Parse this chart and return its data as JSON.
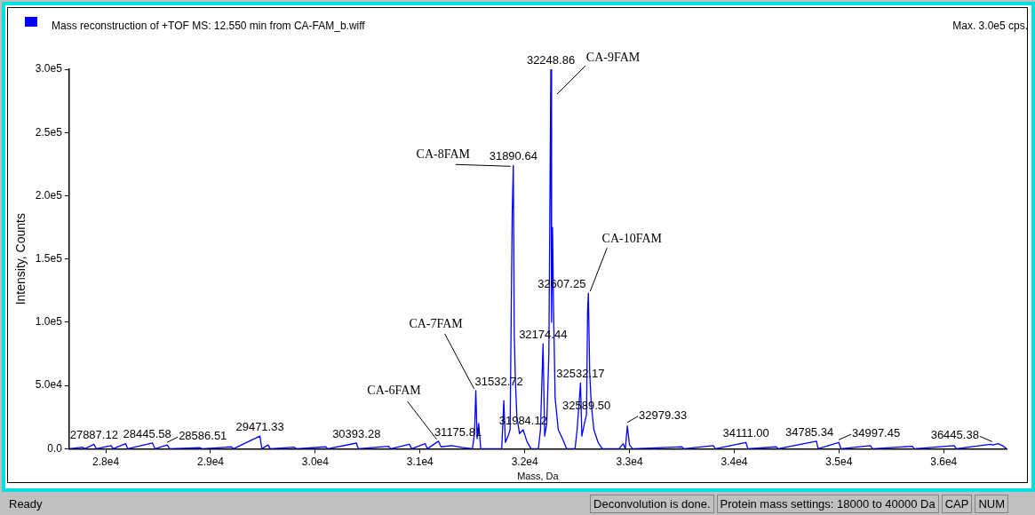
{
  "chart_data": {
    "type": "line",
    "title": "Mass reconstruction of  +TOF MS: 12.550 min from CA-FAM_b.wiff",
    "subtitle": "Max. 3.0e5 cps.",
    "xlabel": "Mass, Da",
    "ylabel": "Intensity, Counts",
    "x": [
      27650,
      27780,
      27800,
      27887.12,
      27910,
      28050,
      28070,
      28190,
      28210,
      28445.58,
      28470,
      28586.51,
      28610,
      28900,
      28920,
      29200,
      29220,
      29471.33,
      29490,
      29550,
      29570,
      29800,
      29820,
      30100,
      30120,
      30393.28,
      30410,
      30700,
      30720,
      30900,
      30920,
      31050,
      31070,
      31175.81,
      31200,
      31300,
      31400,
      31500,
      31520,
      31532.72,
      31545,
      31560,
      31580,
      31780,
      31800,
      31815,
      31840,
      31860,
      31880,
      31890.64,
      31900,
      31910,
      31925,
      31950,
      31984.12,
      32020,
      32060,
      32130,
      32150,
      32174.44,
      32190,
      32210,
      32230,
      32248.86,
      32256,
      32265,
      32275,
      32290,
      32320,
      32360,
      32400,
      32480,
      32500,
      32532.17,
      32545,
      32570,
      32589.5,
      32600,
      32607.25,
      32620,
      32635,
      32660,
      32700,
      32740,
      32900,
      32940,
      32960,
      32979.33,
      33000,
      33030,
      33500,
      33520,
      33800,
      33820,
      34111,
      34130,
      34400,
      34420,
      34785.34,
      34800,
      34997.45,
      35020,
      35300,
      35320,
      35700,
      35720,
      36100,
      36120,
      36445.38,
      36470,
      36520,
      36560,
      36600
    ],
    "series": [
      {
        "color": "#0000ff",
        "values": [
          0,
          1200,
          0,
          3500,
          0,
          2500,
          0,
          4000,
          0,
          4500,
          0,
          3000,
          0,
          800,
          0,
          1500,
          0,
          10000,
          0,
          3000,
          0,
          1200,
          0,
          1500,
          0,
          4500,
          0,
          2000,
          0,
          3500,
          0,
          4000,
          0,
          6000,
          1500,
          2500,
          1000,
          0,
          12000,
          46000,
          8000,
          20000,
          0,
          0,
          38000,
          5000,
          10000,
          15000,
          185000,
          224000,
          90000,
          55000,
          25000,
          12000,
          15000,
          6000,
          0,
          0,
          15000,
          83000,
          10000,
          20000,
          75000,
          300000,
          100000,
          175000,
          110000,
          40000,
          15000,
          8000,
          0,
          0,
          15000,
          52000,
          10000,
          20000,
          27000,
          110000,
          123000,
          60000,
          35000,
          15000,
          5000,
          0,
          0,
          4000,
          0,
          18000,
          3000,
          0,
          1500,
          0,
          2500,
          0,
          5000,
          0,
          1500,
          0,
          6000,
          0,
          5000,
          0,
          2500,
          0,
          2000,
          0,
          2500,
          0,
          3500,
          3000,
          4000,
          2500,
          0
        ]
      }
    ],
    "marker": "none",
    "line_style": "solid",
    "grid": false,
    "xlim": [
      27650,
      36600
    ],
    "xticks": [
      {
        "value": 28000,
        "label": "2.8e4"
      },
      {
        "value": 29000,
        "label": "2.9e4"
      },
      {
        "value": 30000,
        "label": "3.0e4"
      },
      {
        "value": 31000,
        "label": "3.1e4"
      },
      {
        "value": 32000,
        "label": "3.2e4"
      },
      {
        "value": 33000,
        "label": "3.3e4"
      },
      {
        "value": 34000,
        "label": "3.4e4"
      },
      {
        "value": 35000,
        "label": "3.5e4"
      },
      {
        "value": 36000,
        "label": "3.6e4"
      }
    ],
    "ylim": [
      0,
      300000
    ],
    "yticks": [
      {
        "value": 0,
        "label": "0.0"
      },
      {
        "value": 50000,
        "label": "5.0e4"
      },
      {
        "value": 100000,
        "label": "1.0e5"
      },
      {
        "value": 150000,
        "label": "1.5e5"
      },
      {
        "value": 200000,
        "label": "2.0e5"
      },
      {
        "value": 250000,
        "label": "2.5e5"
      },
      {
        "value": 300000,
        "label": "3.0e5"
      }
    ],
    "annotations": [
      {
        "text": "27887.12",
        "x": 27887.12,
        "y": 3500
      },
      {
        "text": "28445.58",
        "x": 28445.58,
        "y": 4500
      },
      {
        "text": "28586.51",
        "x": 28586.51,
        "y": 3000
      },
      {
        "text": "29471.33",
        "x": 29471.33,
        "y": 10000
      },
      {
        "text": "30393.28",
        "x": 30393.28,
        "y": 4500
      },
      {
        "text": "31175.81",
        "x": 31175.81,
        "y": 6000
      },
      {
        "text": "31532.72",
        "x": 31532.72,
        "y": 46000
      },
      {
        "text": "31890.64",
        "x": 31890.64,
        "y": 224000
      },
      {
        "text": "31984.12",
        "x": 31984.12,
        "y": 15000
      },
      {
        "text": "32174.44",
        "x": 32174.44,
        "y": 83000
      },
      {
        "text": "32248.86",
        "x": 32248.86,
        "y": 300000
      },
      {
        "text": "32532.17",
        "x": 32532.17,
        "y": 52000
      },
      {
        "text": "32589.50",
        "x": 32589.5,
        "y": 27000
      },
      {
        "text": "32607.25",
        "x": 32607.25,
        "y": 123000
      },
      {
        "text": "32979.33",
        "x": 32979.33,
        "y": 18000
      },
      {
        "text": "34111.00",
        "x": 34111,
        "y": 5000
      },
      {
        "text": "34785.34",
        "x": 34785.34,
        "y": 6000
      },
      {
        "text": "34997.45",
        "x": 34997.45,
        "y": 5000
      },
      {
        "text": "36445.38",
        "x": 36445.38,
        "y": 3500
      },
      {
        "text": "CA-6FAM",
        "x": 31175.81,
        "y": 6000
      },
      {
        "text": "CA-7FAM",
        "x": 31532.72,
        "y": 46000
      },
      {
        "text": "CA-8FAM",
        "x": 31890.64,
        "y": 224000
      },
      {
        "text": "CA-9FAM",
        "x": 32248.86,
        "y": 300000
      },
      {
        "text": "CA-10FAM",
        "x": 32607.25,
        "y": 123000
      },
      "Ready",
      "Deconvolution is done.",
      "Protein mass settings: 18000 to 40000 Da",
      "CAP",
      "NUM"
    ]
  }
}
